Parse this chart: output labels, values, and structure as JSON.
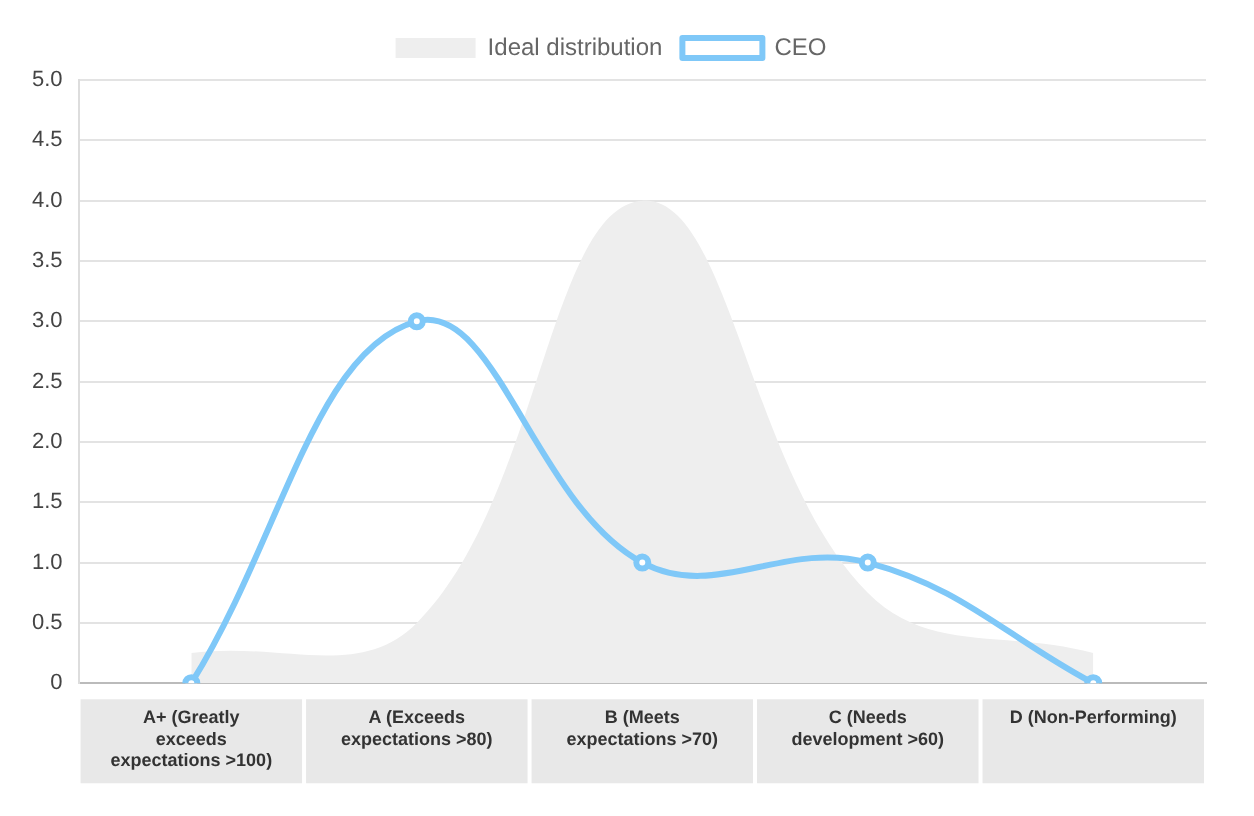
{
  "chart_data": {
    "type": "line",
    "categories": [
      "A+ (Greatly exceeds expectations >100)",
      "A (Exceeds expectations >80)",
      "B (Meets expectations >70)",
      "C (Needs development >60)",
      "D (Non-Performing)"
    ],
    "series": [
      {
        "name": "Ideal distribution",
        "type": "area",
        "color": "#eeeeee",
        "marker": "none",
        "values": [
          0.25,
          0.5,
          4.0,
          0.75,
          0.25
        ]
      },
      {
        "name": "CEO",
        "type": "line",
        "color": "#7fc8f8",
        "marker": "circle",
        "values": [
          0,
          3,
          1,
          1,
          0
        ]
      }
    ],
    "ylim": [
      0,
      5
    ],
    "yticks": [
      {
        "value": 0,
        "label": "0"
      },
      {
        "value": 0.5,
        "label": "0.5"
      },
      {
        "value": 1,
        "label": "1.0"
      },
      {
        "value": 1.5,
        "label": "1.5"
      },
      {
        "value": 2,
        "label": "2.0"
      },
      {
        "value": 2.5,
        "label": "2.5"
      },
      {
        "value": 3,
        "label": "3.0"
      },
      {
        "value": 3.5,
        "label": "3.5"
      },
      {
        "value": 4,
        "label": "4.0"
      },
      {
        "value": 4.5,
        "label": "4.5"
      },
      {
        "value": 5,
        "label": "5.0"
      }
    ],
    "grid": "y",
    "legend": "top"
  }
}
